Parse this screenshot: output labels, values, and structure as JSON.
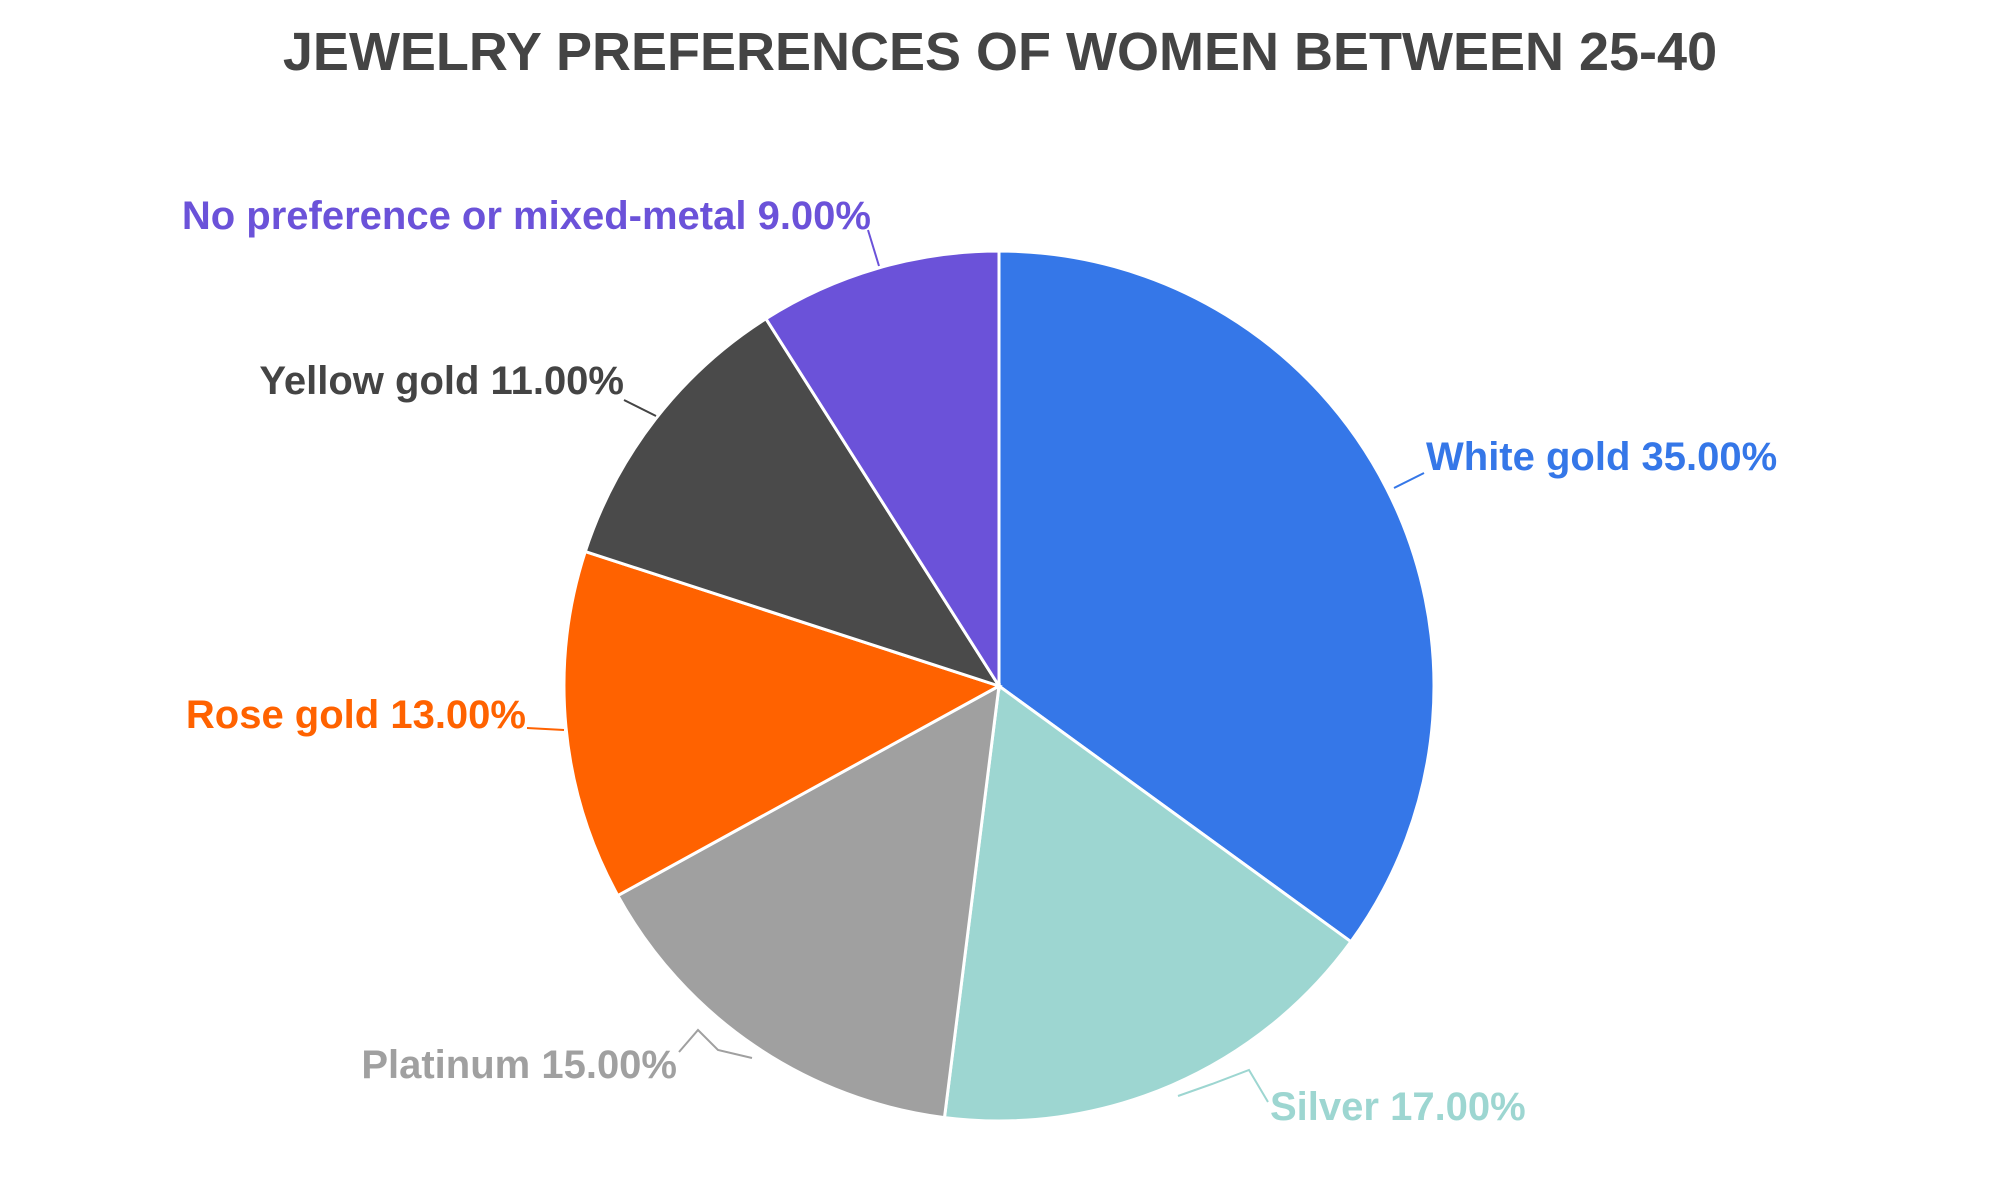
{
  "chart_data": {
    "type": "pie",
    "title": "JEWELRY PREFERENCES OF WOMEN BETWEEN 25-40",
    "slices": [
      {
        "label": "White gold",
        "value": 35.0,
        "display": "White gold 35.00%",
        "color": "#3577e8",
        "label_color": "#3577e8"
      },
      {
        "label": "Silver",
        "value": 17.0,
        "display": "Silver 17.00%",
        "color": "#9dd6d1",
        "label_color": "#9dd6d1"
      },
      {
        "label": "Platinum",
        "value": 15.0,
        "display": "Platinum 15.00%",
        "color": "#a0a0a0",
        "label_color": "#a0a0a0"
      },
      {
        "label": "Rose gold",
        "value": 13.0,
        "display": "Rose gold 13.00%",
        "color": "#ff6200",
        "label_color": "#ff6200"
      },
      {
        "label": "Yellow gold",
        "value": 11.0,
        "display": "Yellow gold 11.00%",
        "color": "#4a4a4a",
        "label_color": "#444444"
      },
      {
        "label": "No preference or mixed-metal",
        "value": 9.0,
        "display": "No preference or mixed-metal 9.00%",
        "color": "#6b52d9",
        "label_color": "#6b52d9"
      }
    ],
    "legend": "none (outside labels)"
  }
}
